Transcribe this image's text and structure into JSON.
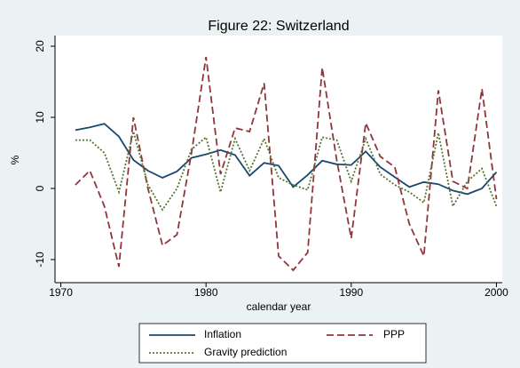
{
  "chart_data": {
    "type": "line",
    "title": "Figure 22: Switzerland",
    "x_label": "calendar year",
    "y_label": "%",
    "x": [
      1971,
      1972,
      1973,
      1974,
      1975,
      1976,
      1977,
      1978,
      1979,
      1980,
      1981,
      1982,
      1983,
      1984,
      1985,
      1986,
      1987,
      1988,
      1989,
      1990,
      1991,
      1992,
      1993,
      1994,
      1995,
      1996,
      1997,
      1998,
      1999,
      2000
    ],
    "series": [
      {
        "name": "Inflation",
        "color": "#1a476f",
        "dash": "solid",
        "values": [
          8.2,
          8.6,
          9.1,
          7.3,
          4.0,
          2.5,
          1.5,
          2.4,
          4.3,
          4.8,
          5.4,
          4.7,
          1.8,
          3.6,
          3.2,
          0.2,
          1.9,
          3.9,
          3.4,
          3.3,
          5.2,
          3.0,
          1.6,
          0.2,
          0.9,
          0.6,
          -0.3,
          -0.8,
          0.0,
          2.3
        ]
      },
      {
        "name": "PPP",
        "color": "#90353b",
        "dash": "dashed",
        "values": [
          0.5,
          2.5,
          -2.5,
          -11,
          10,
          0,
          -8,
          -6.5,
          5,
          18.5,
          2,
          8.5,
          8,
          14.8,
          -9.5,
          -11.5,
          -9,
          17,
          4,
          -7,
          9.2,
          4.5,
          3,
          -5,
          -9.5,
          13.8,
          1,
          0,
          14,
          -1.5
        ]
      },
      {
        "name": "Gravity prediction",
        "color": "#55752f",
        "dash": "dotted",
        "values": [
          6.8,
          6.8,
          5,
          -0.5,
          8,
          0.5,
          -3,
          0,
          5.5,
          7.2,
          -0.5,
          7,
          2.5,
          7,
          1.5,
          0.5,
          -0.2,
          7.2,
          6.8,
          1,
          7,
          2,
          0.5,
          -0.5,
          -2,
          7.8,
          -2.5,
          1,
          2.8,
          -2.5
        ]
      }
    ],
    "xlim": [
      1969.6,
      2000.4
    ],
    "xticks": [
      1970,
      1980,
      1990,
      2000
    ],
    "ylim": [
      -13.25,
      21.5
    ],
    "yticks": [
      -10,
      0,
      10,
      20
    ]
  }
}
